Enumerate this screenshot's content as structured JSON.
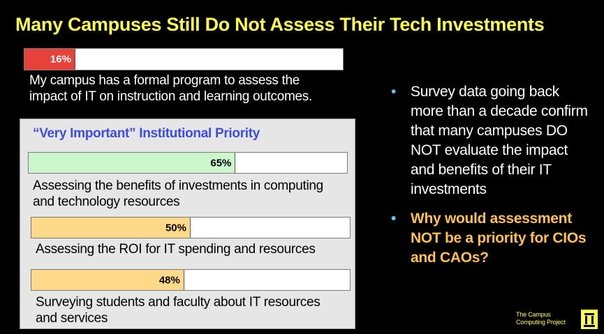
{
  "title": "Many Campuses Still Do Not Assess Their Tech Investments",
  "top_item": {
    "value_label": "16%",
    "label": "My campus has a formal program to assess the impact of IT on instruction and learning outcomes."
  },
  "panel": {
    "title": "“Very Important” Institutional Priority",
    "items": [
      {
        "value_label": "65%",
        "label": "Assessing the benefits of investments in computing and technology resources"
      },
      {
        "value_label": "50%",
        "label": "Assessing the ROI for IT spending and resources"
      },
      {
        "value_label": "48%",
        "label": "Surveying students and faculty about IT resources and services"
      }
    ]
  },
  "bullets": [
    "Survey data going back more than a decade confirm that many campuses DO NOT evaluate the impact and benefits of their IT investments",
    "Why would assessment NOT be a priority for CIOs and CAOs?"
  ],
  "logo": {
    "text": "The Campus Computing Project",
    "icon": "building-icon"
  },
  "colors": {
    "title": "#FFFF4D",
    "top_bar": "#E8413A",
    "bar_benefits": "#CCF7CC",
    "bar_other": "#FFD98A",
    "panel_title": "#3B4CE0",
    "bullet_dot": "#5CC8F0",
    "bullet_highlight": "#FFC04D"
  },
  "chart_data": {
    "type": "bar",
    "orientation": "horizontal",
    "categories": [
      "My campus has a formal program to assess the impact of IT on instruction and learning outcomes.",
      "Assessing the benefits of investments in computing and technology resources",
      "Assessing the ROI for IT spending and resources",
      "Surveying students and faculty about IT resources and services"
    ],
    "values": [
      16,
      65,
      50,
      48
    ],
    "unit": "%",
    "xlim": [
      0,
      100
    ]
  }
}
